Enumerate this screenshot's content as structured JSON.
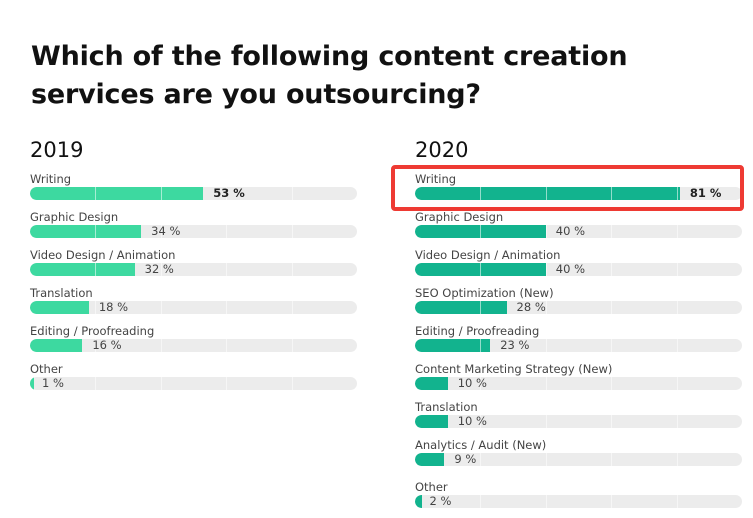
{
  "title_line1": "Which of the following content creation",
  "title_line2": "services are you outsourcing?",
  "colors": {
    "fill_2019": "#3dd9a0",
    "fill_2020": "#12b38e",
    "track": "#ececec",
    "highlight": "#ee3a33"
  },
  "chart_data": [
    {
      "type": "bar",
      "orientation": "horizontal",
      "title": "2019",
      "xlim": [
        0,
        100
      ],
      "grid": true,
      "categories": [
        "Writing",
        "Graphic Design",
        "Video Design / Animation",
        "Translation",
        "Editing / Proofreading",
        "Other"
      ],
      "values": [
        53,
        34,
        32,
        18,
        16,
        1
      ],
      "value_labels": [
        "53 %",
        "34 %",
        "32 %",
        "18 %",
        "16 %",
        "1 %"
      ]
    },
    {
      "type": "bar",
      "orientation": "horizontal",
      "title": "2020",
      "xlim": [
        0,
        100
      ],
      "grid": true,
      "categories": [
        "Writing",
        "Graphic Design",
        "Video Design / Animation",
        "SEO Optimization (New)",
        "Editing / Proofreading",
        "Content Marketing Strategy (New)",
        "Translation",
        "Analytics / Audit (New)",
        "Other"
      ],
      "values": [
        81,
        40,
        40,
        28,
        23,
        10,
        10,
        9,
        2
      ],
      "value_labels": [
        "81 %",
        "40 %",
        "40 %",
        "28 %",
        "23 %",
        "10 %",
        "10 %",
        "9 %",
        "2 %"
      ],
      "highlighted_category": "Writing"
    }
  ]
}
